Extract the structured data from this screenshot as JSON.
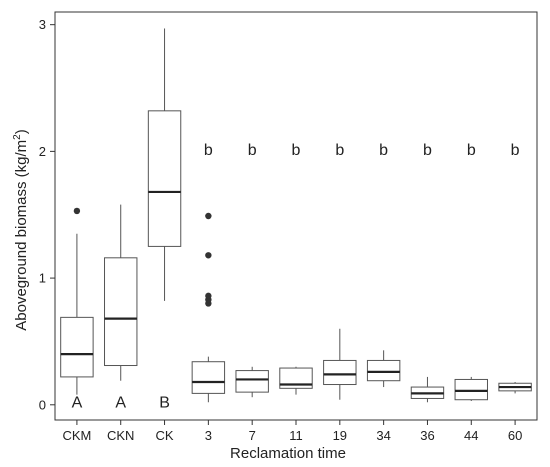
{
  "chart_data": {
    "type": "boxplot",
    "xlabel": "Reclamation time",
    "ylabel": "Aboveground biomass (kg/m",
    "ylabel_sup": "2",
    "ylabel_close": ")",
    "ylim": [
      -0.12,
      3.1
    ],
    "yticks": [
      0,
      1,
      2,
      3
    ],
    "grid": false,
    "groups": [
      {
        "category": "CKM",
        "min": 0.08,
        "q1": 0.22,
        "median": 0.4,
        "q3": 0.69,
        "max": 1.35,
        "outliers": [
          1.53
        ],
        "letter": "A"
      },
      {
        "category": "CKN",
        "min": 0.19,
        "q1": 0.31,
        "median": 0.68,
        "q3": 1.16,
        "max": 1.58,
        "outliers": [],
        "letter": "A"
      },
      {
        "category": "CK",
        "min": 0.82,
        "q1": 1.25,
        "median": 1.68,
        "q3": 2.32,
        "max": 2.97,
        "outliers": [],
        "letter": "B"
      },
      {
        "category": "3",
        "min": 0.02,
        "q1": 0.09,
        "median": 0.18,
        "q3": 0.34,
        "max": 0.38,
        "outliers": [
          0.8,
          0.83,
          0.86,
          1.18,
          1.49
        ],
        "letter": "b"
      },
      {
        "category": "7",
        "min": 0.06,
        "q1": 0.1,
        "median": 0.2,
        "q3": 0.27,
        "max": 0.3,
        "outliers": [],
        "letter": "b"
      },
      {
        "category": "11",
        "min": 0.08,
        "q1": 0.13,
        "median": 0.16,
        "q3": 0.29,
        "max": 0.3,
        "outliers": [],
        "letter": "b"
      },
      {
        "category": "19",
        "min": 0.04,
        "q1": 0.16,
        "median": 0.24,
        "q3": 0.35,
        "max": 0.6,
        "outliers": [],
        "letter": "b"
      },
      {
        "category": "34",
        "min": 0.14,
        "q1": 0.19,
        "median": 0.26,
        "q3": 0.35,
        "max": 0.43,
        "outliers": [],
        "letter": "b"
      },
      {
        "category": "36",
        "min": 0.02,
        "q1": 0.05,
        "median": 0.09,
        "q3": 0.14,
        "max": 0.22,
        "outliers": [],
        "letter": "b"
      },
      {
        "category": "44",
        "min": 0.03,
        "q1": 0.04,
        "median": 0.11,
        "q3": 0.2,
        "max": 0.22,
        "outliers": [],
        "letter": "b"
      },
      {
        "category": "60",
        "min": 0.09,
        "q1": 0.11,
        "median": 0.14,
        "q3": 0.17,
        "max": 0.18,
        "outliers": [],
        "letter": "b"
      }
    ],
    "letter_positions": {
      "a": 2.64,
      "b": 1.97,
      "bottom_letters_y": -0.02
    }
  }
}
